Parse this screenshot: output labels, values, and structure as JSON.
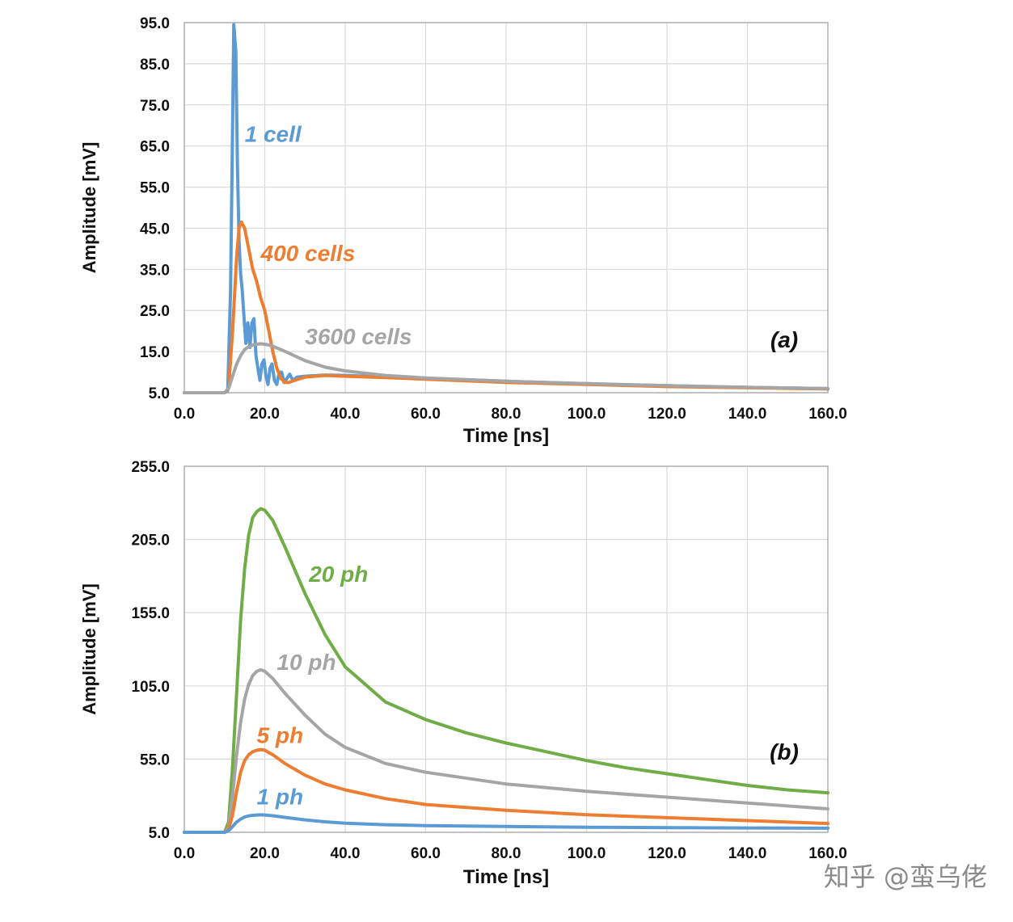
{
  "chart_data": [
    {
      "type": "line",
      "panel_label": "(a)",
      "xlabel": "Time [ns]",
      "ylabel": "Amplitude [mV]",
      "xlim": [
        0,
        160
      ],
      "ylim": [
        5,
        95
      ],
      "xticks": [
        "0.0",
        "20.0",
        "40.0",
        "60.0",
        "80.0",
        "100.0",
        "120.0",
        "140.0",
        "160.0"
      ],
      "yticks": [
        "5.0",
        "15.0",
        "25.0",
        "35.0",
        "45.0",
        "55.0",
        "65.0",
        "75.0",
        "85.0",
        "95.0"
      ],
      "grid": true,
      "series": [
        {
          "name": "1 cell",
          "color": "#5b9bd5",
          "label_at": [
            15,
            66
          ],
          "x": [
            0,
            10,
            10.8,
            11.5,
            12.0,
            12.3,
            12.8,
            13.2,
            13.6,
            14.0,
            14.4,
            14.8,
            15.3,
            15.8,
            16.3,
            16.8,
            17.3,
            17.8,
            18.3,
            18.8,
            19.3,
            19.8,
            20.3,
            20.8,
            21.3,
            21.8,
            22.4,
            23.0,
            23.6,
            24.2,
            24.8,
            25.5,
            26.2,
            27,
            28,
            30,
            35,
            40,
            60,
            80,
            100,
            120,
            140,
            160
          ],
          "y": [
            5,
            5,
            5.5,
            30,
            70,
            94.5,
            88,
            60,
            42,
            34,
            30,
            24,
            17,
            22,
            16,
            22,
            23,
            14,
            11,
            8,
            12,
            13,
            9,
            7,
            11,
            12,
            8,
            7,
            10,
            10,
            7.5,
            8.5,
            9.5,
            8,
            8.8,
            9,
            9.3,
            9.2,
            8.5,
            7.8,
            7.2,
            6.7,
            6.3,
            6
          ]
        },
        {
          "name": "400 cells",
          "color": "#ed7d31",
          "label_at": [
            19,
            37
          ],
          "x": [
            0,
            10,
            11,
            12,
            13,
            13.6,
            14.2,
            15,
            16,
            17,
            18,
            19,
            20,
            21,
            22,
            23,
            24,
            25,
            26,
            28,
            30,
            35,
            40,
            50,
            60,
            80,
            100,
            120,
            140,
            160
          ],
          "y": [
            5,
            5,
            6,
            20,
            38,
            45,
            46.5,
            45,
            40,
            35,
            32,
            28,
            25,
            20,
            15,
            11,
            8.5,
            7.5,
            7.5,
            8.2,
            8.8,
            9.2,
            9.0,
            8.7,
            8.3,
            7.5,
            7.0,
            6.5,
            6.2,
            5.9
          ]
        },
        {
          "name": "3600 cells",
          "color": "#a5a5a5",
          "label_at": [
            30,
            16.8
          ],
          "x": [
            0,
            10,
            11,
            12,
            13,
            14,
            15,
            16,
            17,
            18,
            19,
            20,
            21,
            22,
            24,
            26,
            28,
            30,
            35,
            40,
            50,
            60,
            80,
            100,
            120,
            140,
            160
          ],
          "y": [
            5,
            5,
            6,
            9,
            12,
            14,
            15.5,
            16.2,
            16.6,
            16.8,
            16.9,
            16.8,
            16.6,
            16.3,
            15.5,
            14.6,
            13.7,
            12.8,
            11.2,
            10.3,
            9.2,
            8.6,
            7.8,
            7.2,
            6.7,
            6.3,
            6
          ]
        }
      ]
    },
    {
      "type": "line",
      "panel_label": "(b)",
      "xlabel": "Time [ns]",
      "ylabel": "Amplitude [mV]",
      "xlim": [
        0,
        160
      ],
      "ylim": [
        5,
        255
      ],
      "xticks": [
        "0.0",
        "20.0",
        "40.0",
        "60.0",
        "80.0",
        "100.0",
        "120.0",
        "140.0",
        "160.0"
      ],
      "yticks": [
        "5.0",
        "55.0",
        "105.0",
        "155.0",
        "205.0",
        "255.0"
      ],
      "grid": true,
      "series": [
        {
          "name": "20 ph",
          "color": "#70ad47",
          "label_at": [
            31,
            176
          ],
          "x": [
            0,
            10,
            11,
            12,
            13,
            14,
            15,
            16,
            17,
            18,
            19,
            20,
            22,
            25,
            30,
            35,
            40,
            50,
            60,
            70,
            80,
            90,
            100,
            110,
            120,
            130,
            140,
            150,
            160
          ],
          "y": [
            5,
            5,
            12,
            50,
            100,
            150,
            185,
            208,
            220,
            224,
            226,
            225,
            218,
            200,
            168,
            140,
            118,
            94,
            82,
            73,
            66,
            60,
            54,
            49,
            45,
            41,
            37,
            34,
            32
          ]
        },
        {
          "name": "10 ph",
          "color": "#a5a5a5",
          "label_at": [
            23,
            116
          ],
          "x": [
            0,
            10,
            11,
            12,
            13,
            14,
            15,
            16,
            17,
            18,
            19,
            20,
            22,
            25,
            30,
            35,
            40,
            50,
            60,
            80,
            100,
            120,
            140,
            160
          ],
          "y": [
            5,
            5,
            8,
            30,
            58,
            80,
            96,
            106,
            112,
            115,
            116,
            115,
            110,
            100,
            85,
            72,
            63,
            52,
            46,
            38,
            33,
            29,
            25,
            21
          ]
        },
        {
          "name": "5 ph",
          "color": "#ed7d31",
          "label_at": [
            18,
            66
          ],
          "x": [
            0,
            10,
            11,
            12,
            13,
            14,
            15,
            16,
            17,
            18,
            19,
            20,
            22,
            25,
            30,
            35,
            40,
            50,
            60,
            80,
            100,
            120,
            140,
            160
          ],
          "y": [
            5,
            5,
            7,
            17,
            33,
            46,
            54,
            58,
            60,
            61,
            61.5,
            61,
            58,
            52,
            44,
            38,
            34,
            28,
            24,
            20,
            17,
            15,
            13,
            11
          ]
        },
        {
          "name": "1 ph",
          "color": "#5b9bd5",
          "label_at": [
            18,
            24
          ],
          "x": [
            0,
            10,
            11,
            12,
            13,
            14,
            15,
            16,
            17,
            18,
            19,
            20,
            22,
            25,
            30,
            35,
            40,
            50,
            60,
            80,
            100,
            120,
            140,
            160
          ],
          "y": [
            5,
            5,
            6,
            9,
            12,
            14,
            15.5,
            16.2,
            16.6,
            16.8,
            16.9,
            16.8,
            16.3,
            15.2,
            13.5,
            12.2,
            11.2,
            10.2,
            9.6,
            9.0,
            8.5,
            8.2,
            8.0,
            7.8
          ]
        }
      ]
    }
  ],
  "watermark": "知乎 @蛮乌佬"
}
